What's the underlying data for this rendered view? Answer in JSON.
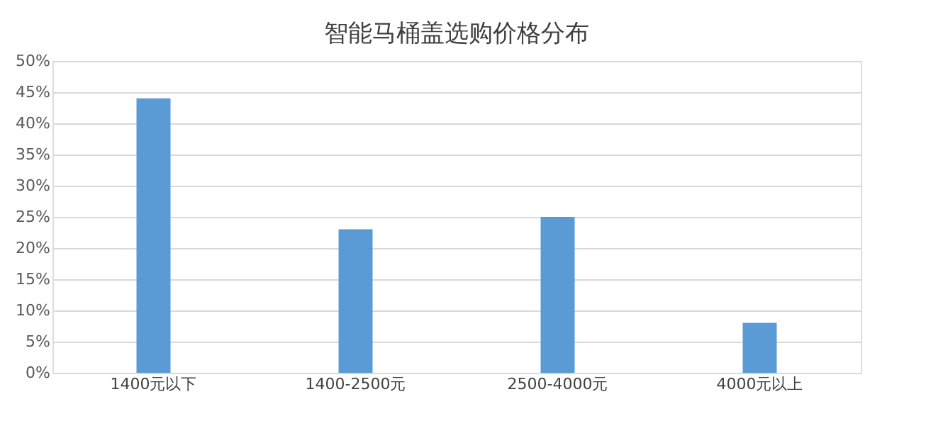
{
  "chart_data": {
    "type": "bar",
    "title": "智能马桶盖选购价格分布",
    "categories": [
      "1400元以下",
      "1400-2500元",
      "2500-4000元",
      "4000元以上"
    ],
    "values": [
      44,
      23,
      25,
      8
    ],
    "color": "#5b9bd5",
    "ylim": [
      0,
      50
    ],
    "yticks": [
      {
        "value": 0,
        "label": "0%"
      },
      {
        "value": 5,
        "label": "5%"
      },
      {
        "value": 10,
        "label": "10%"
      },
      {
        "value": 15,
        "label": "15%"
      },
      {
        "value": 20,
        "label": "20%"
      },
      {
        "value": 25,
        "label": "25%"
      },
      {
        "value": 30,
        "label": "30%"
      },
      {
        "value": 35,
        "label": "35%"
      },
      {
        "value": 40,
        "label": "40%"
      },
      {
        "value": 45,
        "label": "45%"
      },
      {
        "value": 50,
        "label": "50%"
      }
    ],
    "grid": "y"
  }
}
